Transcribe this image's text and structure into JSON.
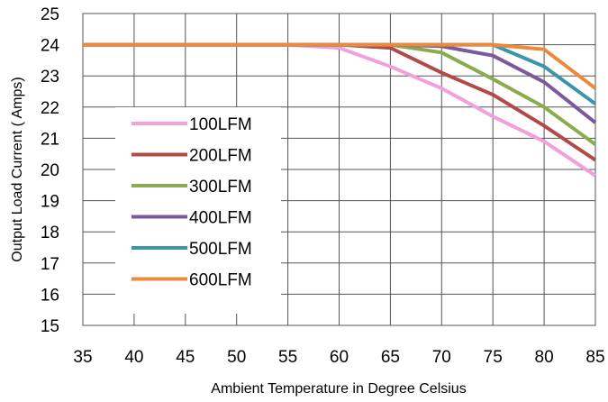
{
  "chart_data": {
    "type": "line",
    "xlabel": "Ambient Temperature in Degree Celsius",
    "ylabel": "Output Load Current ( Amps)",
    "x": [
      35,
      40,
      45,
      50,
      55,
      60,
      65,
      70,
      75,
      80,
      85
    ],
    "xlim": [
      35,
      85
    ],
    "ylim": [
      15,
      25
    ],
    "xticks": [
      "35",
      "40",
      "45",
      "50",
      "55",
      "60",
      "65",
      "70",
      "75",
      "80",
      "85"
    ],
    "yticks": [
      "15",
      "16",
      "17",
      "18",
      "19",
      "20",
      "21",
      "22",
      "23",
      "24",
      "25"
    ],
    "grid": true,
    "legend_position": "left",
    "series": [
      {
        "name": "100LFM",
        "color": "#f0a0dc",
        "values": [
          24.0,
          24.0,
          24.0,
          24.0,
          24.0,
          23.9,
          23.3,
          22.6,
          21.7,
          20.9,
          19.8
        ]
      },
      {
        "name": "200LFM",
        "color": "#b24a48",
        "values": [
          24.0,
          24.0,
          24.0,
          24.0,
          24.0,
          24.0,
          23.9,
          23.1,
          22.4,
          21.4,
          20.3
        ]
      },
      {
        "name": "300LFM",
        "color": "#8aac4e",
        "values": [
          24.0,
          24.0,
          24.0,
          24.0,
          24.0,
          24.0,
          24.0,
          23.75,
          22.9,
          22.0,
          20.8
        ]
      },
      {
        "name": "400LFM",
        "color": "#7a5a9c",
        "values": [
          24.0,
          24.0,
          24.0,
          24.0,
          24.0,
          24.0,
          24.0,
          23.95,
          23.65,
          22.8,
          21.5
        ]
      },
      {
        "name": "500LFM",
        "color": "#3e95ab",
        "values": [
          24.0,
          24.0,
          24.0,
          24.0,
          24.0,
          24.0,
          24.0,
          24.0,
          24.0,
          23.3,
          22.1
        ]
      },
      {
        "name": "600LFM",
        "color": "#ec8a3a",
        "values": [
          24.0,
          24.0,
          24.0,
          24.0,
          24.0,
          24.0,
          24.0,
          24.0,
          24.0,
          23.85,
          22.6
        ]
      }
    ]
  }
}
